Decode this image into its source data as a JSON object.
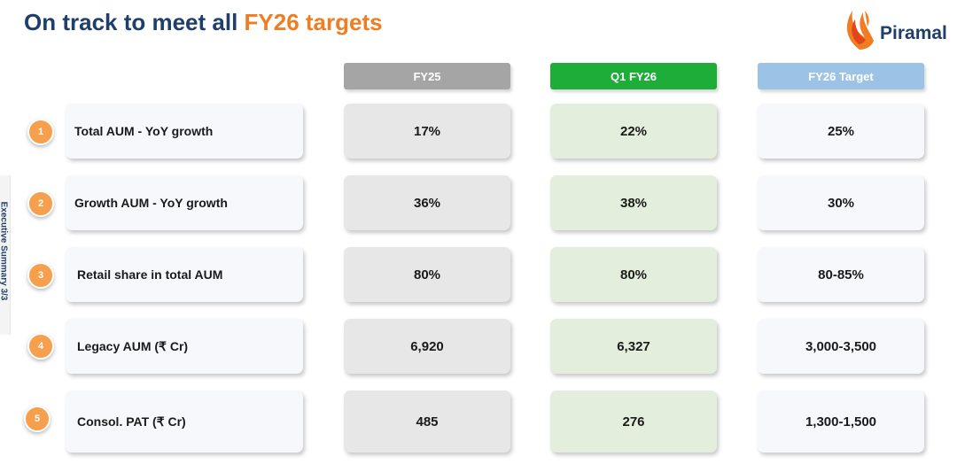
{
  "title": {
    "prefix": "On track to meet all ",
    "highlight": "FY26 targets"
  },
  "brand": {
    "name": "Piramal",
    "icon": "piramal-flame-logo",
    "text_color": "#1f3f6b",
    "flame_color": "#f07d24"
  },
  "side_label": "Executive Summary  3/3",
  "columns": [
    {
      "label": "FY25",
      "color": "#a5a5a5"
    },
    {
      "label": "Q1 FY26",
      "color": "#1fad3a"
    },
    {
      "label": "FY26 Target",
      "color": "#9cc3e5"
    }
  ],
  "rows": [
    {
      "num": "1",
      "label": "Total AUM - YoY growth",
      "fy25": "17%",
      "q1fy26": "22%",
      "target": "25%"
    },
    {
      "num": "2",
      "label": "Growth AUM - YoY growth",
      "fy25": "36%",
      "q1fy26": "38%",
      "target": "30%"
    },
    {
      "num": "3",
      "label": "Retail share in total AUM",
      "fy25": "80%",
      "q1fy26": "80%",
      "target": "80-85%"
    },
    {
      "num": "4",
      "label": "Legacy AUM (₹ Cr)",
      "fy25": "6,920",
      "q1fy26": "6,327",
      "target": "3,000-3,500"
    },
    {
      "num": "5",
      "label": "Consol. PAT (₹ Cr)",
      "fy25": "485",
      "q1fy26": "276",
      "target": "1,300-1,500"
    }
  ]
}
